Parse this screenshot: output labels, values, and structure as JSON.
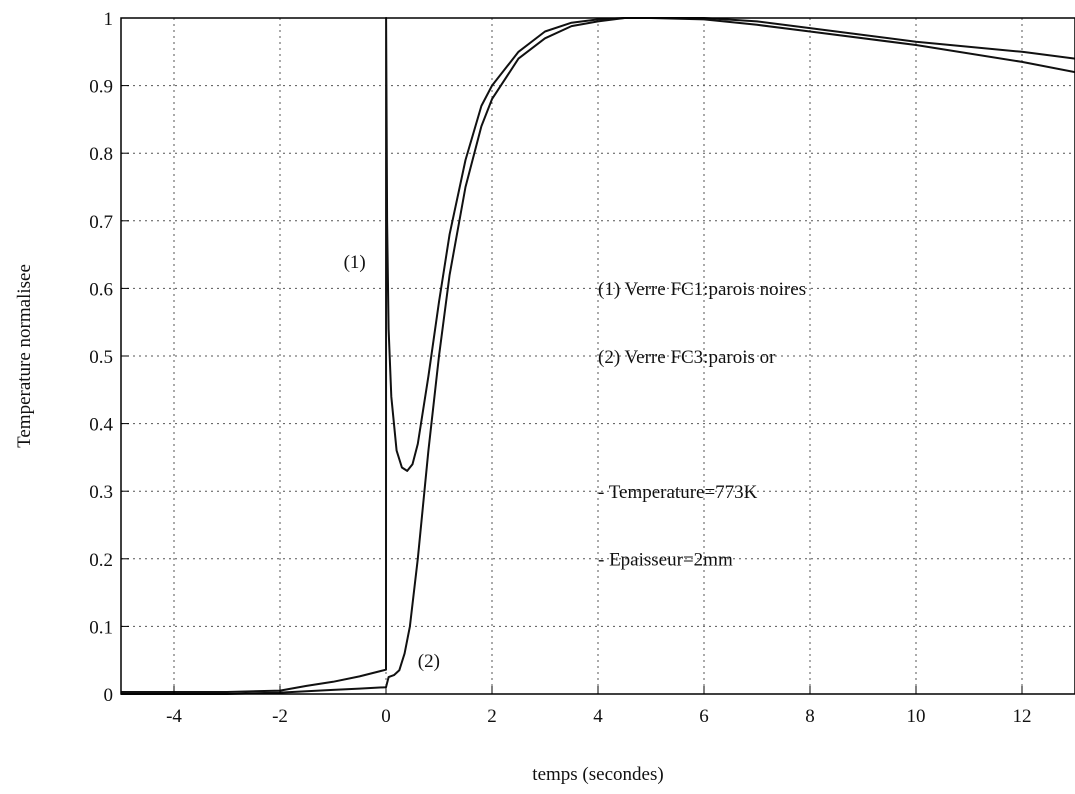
{
  "chart_data": {
    "type": "line",
    "xlabel": "temps (secondes)",
    "ylabel": "Temperature normalisee",
    "xlim": [
      -5,
      13
    ],
    "ylim": [
      0,
      1
    ],
    "xticks": [
      -4,
      -2,
      0,
      2,
      4,
      6,
      8,
      10,
      12
    ],
    "yticks": [
      0,
      0.1,
      0.2,
      0.3,
      0.4,
      0.5,
      0.6,
      0.7,
      0.8,
      0.9,
      1
    ],
    "ytick_labels": [
      "0",
      "0.1",
      "0.2",
      "0.3",
      "0.4",
      "0.5",
      "0.6",
      "0.7",
      "0.8",
      "0.9",
      "1"
    ],
    "grid": true,
    "series": [
      {
        "name": "(1)",
        "x": [
          -5,
          -3,
          -2,
          -1.5,
          -1,
          -0.5,
          0,
          0.001,
          0.02,
          0.05,
          0.1,
          0.2,
          0.3,
          0.4,
          0.5,
          0.6,
          0.8,
          1,
          1.2,
          1.5,
          1.8,
          2,
          2.5,
          3,
          3.5,
          4,
          4.5,
          5,
          6,
          7,
          8,
          10,
          12,
          13
        ],
        "y": [
          0.003,
          0.003,
          0.005,
          0.012,
          0.018,
          0.026,
          0.036,
          1.0,
          0.7,
          0.54,
          0.44,
          0.36,
          0.335,
          0.33,
          0.34,
          0.37,
          0.47,
          0.58,
          0.68,
          0.79,
          0.87,
          0.9,
          0.95,
          0.98,
          0.993,
          0.998,
          1.0,
          1.0,
          0.998,
          0.99,
          0.98,
          0.96,
          0.935,
          0.92
        ]
      },
      {
        "name": "(2)",
        "x": [
          -5,
          -3,
          -2,
          -1.5,
          -1,
          -0.5,
          0,
          0.05,
          0.15,
          0.25,
          0.35,
          0.45,
          0.6,
          0.8,
          1,
          1.2,
          1.5,
          1.8,
          2,
          2.5,
          3,
          3.5,
          4,
          4.5,
          5,
          6,
          7,
          8,
          10,
          12,
          13
        ],
        "y": [
          0.0,
          0.0,
          0.002,
          0.004,
          0.006,
          0.008,
          0.01,
          0.025,
          0.028,
          0.035,
          0.06,
          0.1,
          0.2,
          0.36,
          0.5,
          0.62,
          0.75,
          0.84,
          0.88,
          0.94,
          0.97,
          0.988,
          0.995,
          1.0,
          1.0,
          1.0,
          0.995,
          0.985,
          0.965,
          0.95,
          0.94
        ]
      }
    ],
    "annotations": [
      {
        "id": "label-1",
        "text": "(1)",
        "x": -0.8,
        "y": 0.63
      },
      {
        "id": "label-2",
        "text": "(2)",
        "x": 0.6,
        "y": 0.04
      },
      {
        "id": "legend-1",
        "text": "(1) Verre FC1:parois noires",
        "x": 4.0,
        "y": 0.59
      },
      {
        "id": "legend-2",
        "text": "(2) Verre FC3:parois or",
        "x": 4.0,
        "y": 0.49
      },
      {
        "id": "note-temp",
        "text": "- Temperature=773K",
        "x": 4.0,
        "y": 0.29
      },
      {
        "id": "note-thick",
        "text": "- Epaisseur=2mm",
        "x": 4.0,
        "y": 0.19
      }
    ]
  }
}
